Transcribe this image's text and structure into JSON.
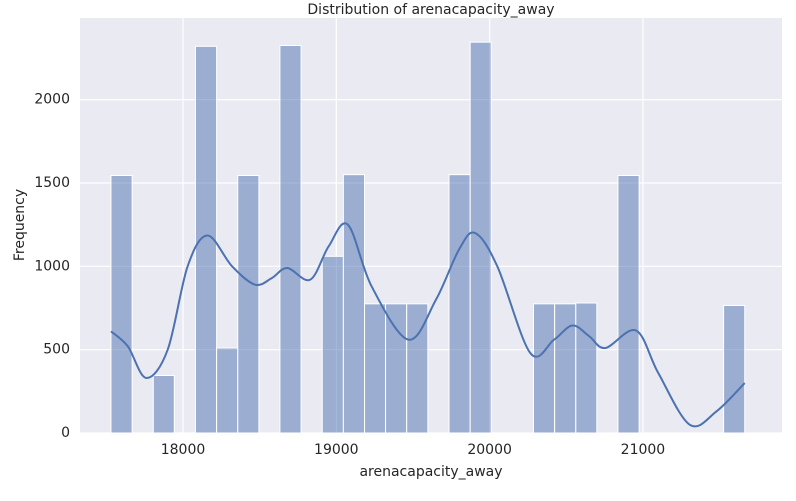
{
  "chart_data": {
    "type": "histogram",
    "title": "Distribution of arenacapacity_away",
    "x_label": "arenacapacity_away",
    "y_label": "Frequency",
    "bins": [
      17530,
      17668,
      17806,
      17943,
      18081,
      18219,
      18357,
      18495,
      18632,
      18770,
      18908,
      19046,
      19184,
      19321,
      19459,
      19597,
      19735,
      19873,
      20010,
      20148,
      20286,
      20424,
      20562,
      20699,
      20837,
      20975,
      21113,
      21251,
      21388,
      21526,
      21664
    ],
    "counts": [
      1545,
      0,
      345,
      0,
      2320,
      510,
      1545,
      0,
      2325,
      0,
      1060,
      1550,
      775,
      775,
      775,
      0,
      1550,
      2345,
      0,
      0,
      775,
      775,
      780,
      0,
      1545,
      0,
      0,
      0,
      0,
      765
    ],
    "color": "#4c72b0",
    "kde": {
      "color": "#4c72b0",
      "x": [
        17530,
        17640,
        17760,
        17900,
        18030,
        18160,
        18320,
        18470,
        18580,
        18680,
        18830,
        18950,
        19075,
        19230,
        19470,
        19650,
        19800,
        19905,
        20050,
        20265,
        20420,
        20540,
        20650,
        20755,
        20955,
        21100,
        21305,
        21480,
        21664
      ],
      "y": [
        610,
        520,
        330,
        500,
        1000,
        1185,
        1000,
        890,
        930,
        990,
        920,
        1120,
        1250,
        880,
        560,
        800,
        1100,
        1200,
        1000,
        480,
        560,
        645,
        580,
        510,
        615,
        360,
        50,
        130,
        300
      ]
    },
    "xlim": [
      17328,
      21907
    ],
    "ylim": [
      0,
      2490
    ],
    "xticks": [
      18000,
      19000,
      20000,
      21000
    ],
    "yticks": [
      0,
      500,
      1000,
      1500,
      2000
    ],
    "grid": true
  }
}
